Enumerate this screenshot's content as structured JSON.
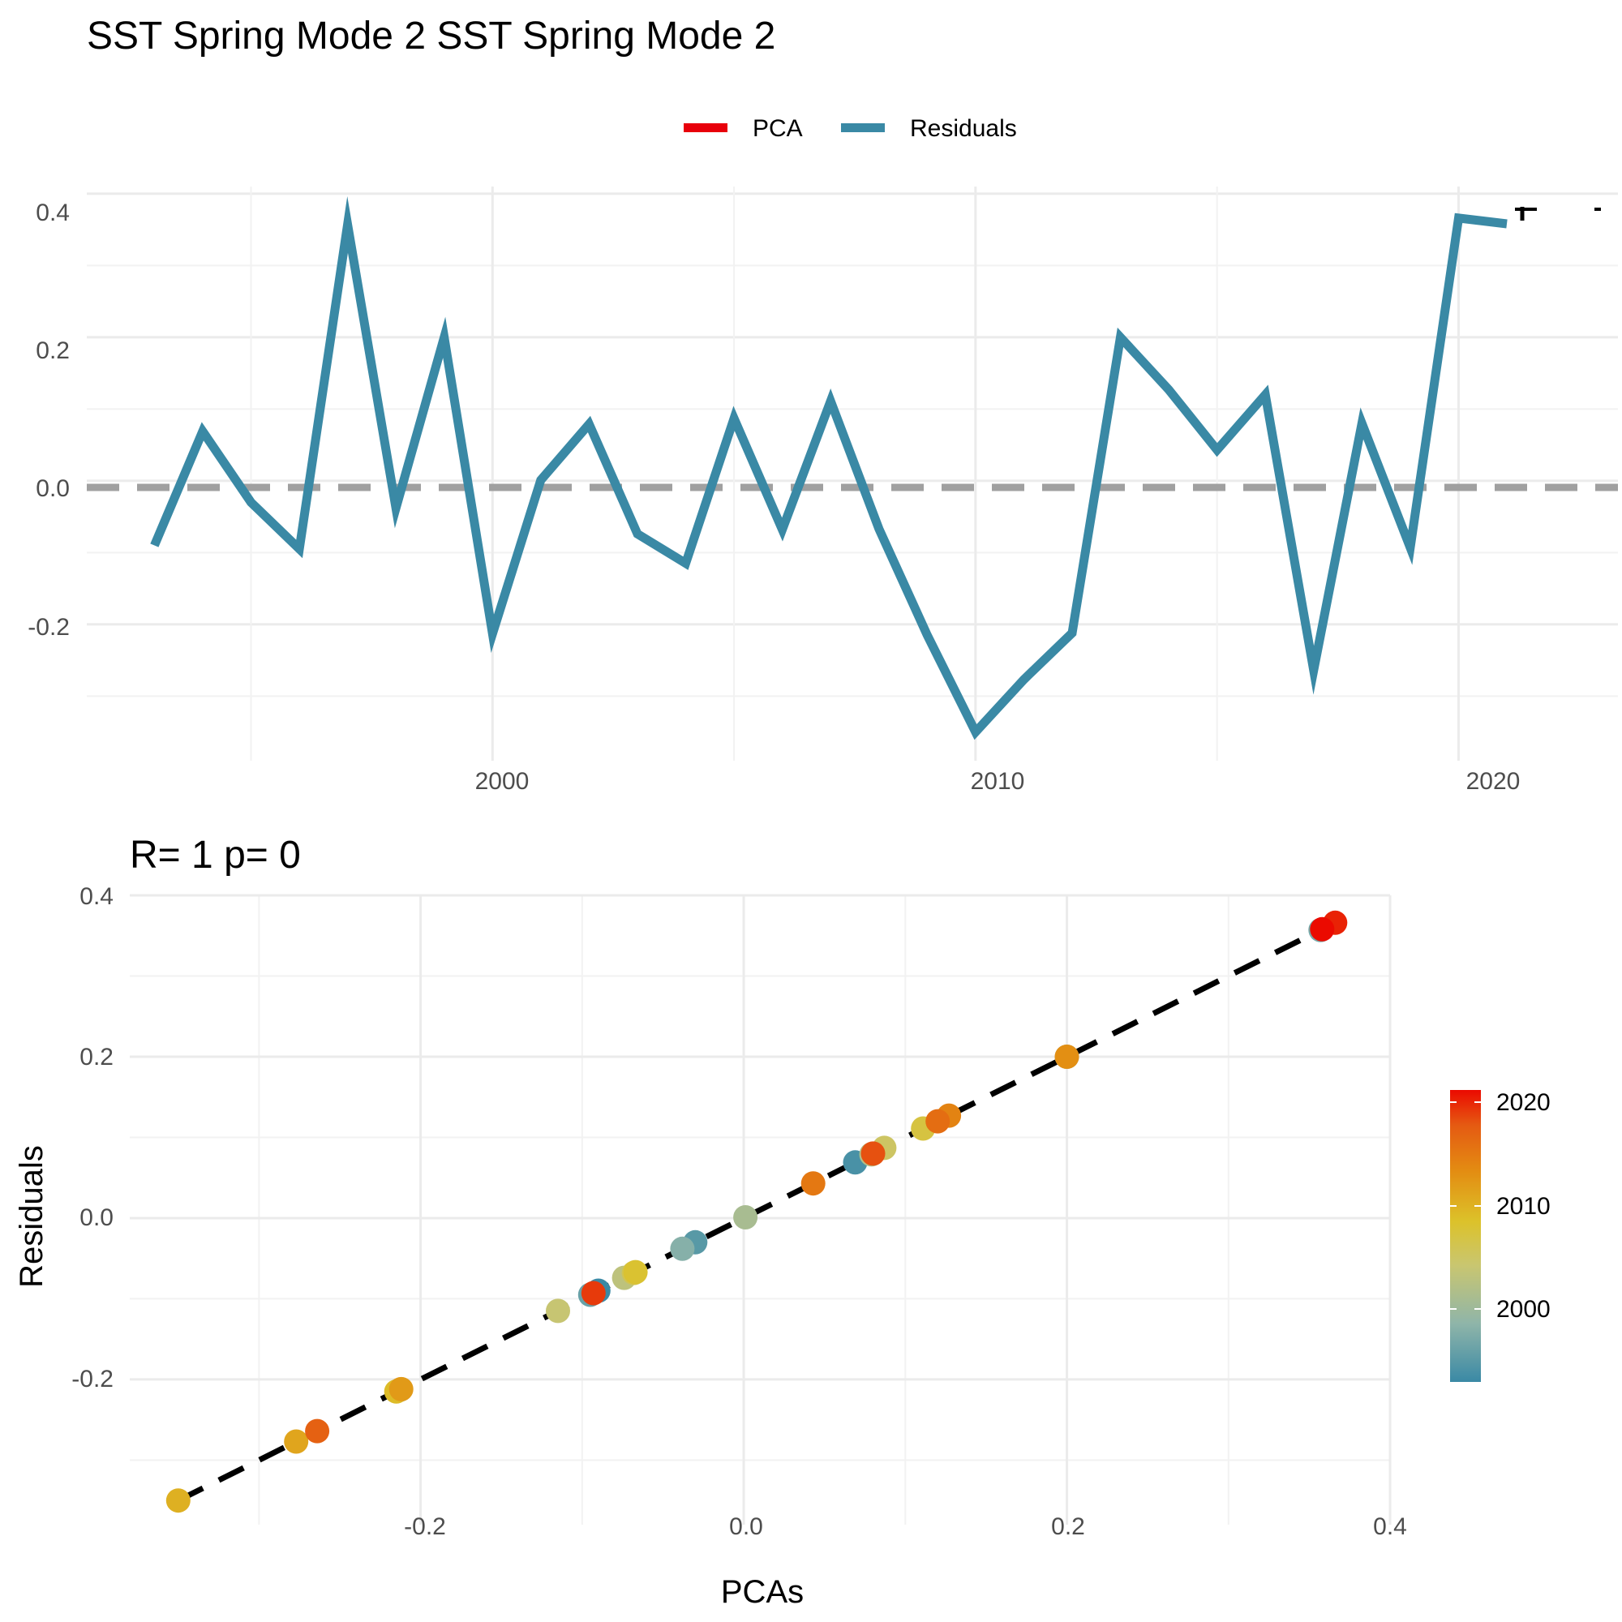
{
  "colors": {
    "pca": "#E8000B",
    "residuals": "#3A89A5",
    "zero_line": "#A0A0A0",
    "fit_line": "#000000",
    "grid": "#EBEBEB",
    "scale_low": "#3A89A5",
    "scale_mid": "#DCC22A",
    "scale_high": "#EB0A00"
  },
  "chart_data": [
    {
      "type": "line",
      "title": "SST Spring Mode 2 SST Spring Mode 2",
      "xlabel": "",
      "ylabel": "",
      "legend": {
        "position": "top",
        "entries": [
          {
            "label": "PCA",
            "color": "#E8000B"
          },
          {
            "label": "Residuals",
            "color": "#3A89A5"
          }
        ]
      },
      "grid": true,
      "x_ticks": [
        "2000",
        "2010",
        "2020"
      ],
      "y_ticks": [
        "-0.2",
        "0.0",
        "0.2",
        "0.4"
      ],
      "xlim": [
        1991.6,
        2023.3
      ],
      "ylim": [
        -0.39,
        0.41
      ],
      "reference_line": {
        "y": 0,
        "style": "dashed"
      },
      "x": [
        1993,
        1994,
        1995,
        1996,
        1997,
        1998,
        1999,
        2000,
        2001,
        2002,
        2003,
        2004,
        2005,
        2006,
        2007,
        2008,
        2009,
        2010,
        2011,
        2012,
        2013,
        2014,
        2015,
        2016,
        2017,
        2018,
        2019,
        2020,
        2021
      ],
      "series": [
        {
          "name": "Residuals",
          "values": [
            -0.09,
            0.069,
            -0.03,
            -0.095,
            0.357,
            -0.038,
            0.2,
            -0.213,
            0.001,
            0.079,
            -0.074,
            -0.115,
            0.087,
            -0.068,
            0.111,
            -0.067,
            -0.215,
            -0.35,
            -0.277,
            -0.212,
            0.2,
            0.127,
            0.043,
            0.12,
            -0.264,
            0.08,
            -0.093,
            0.366,
            0.358
          ]
        }
      ]
    },
    {
      "type": "scatter",
      "title": "R= 1  p= 0",
      "xlabel": "PCAs",
      "ylabel": "Residuals",
      "grid": true,
      "x_ticks": [
        "-0.2",
        "0.0",
        "0.2",
        "0.4"
      ],
      "y_ticks": [
        "-0.2",
        "0.0",
        "0.2",
        "0.4"
      ],
      "xlim": [
        -0.38,
        0.4
      ],
      "ylim": [
        -0.38,
        0.4
      ],
      "fit_line": {
        "style": "dashed",
        "from": [
          -0.35,
          -0.35
        ],
        "to": [
          0.366,
          0.366
        ]
      },
      "color_scale": {
        "title": "",
        "ticks": [
          "2000",
          "2010",
          "2020"
        ],
        "range": [
          1993,
          2021
        ]
      },
      "points": [
        {
          "x": -0.09,
          "y": -0.09,
          "year": 1993
        },
        {
          "x": 0.069,
          "y": 0.069,
          "year": 1994
        },
        {
          "x": -0.03,
          "y": -0.03,
          "year": 1995
        },
        {
          "x": -0.095,
          "y": -0.095,
          "year": 1996
        },
        {
          "x": 0.357,
          "y": 0.357,
          "year": 1997
        },
        {
          "x": -0.038,
          "y": -0.038,
          "year": 1998
        },
        {
          "x": 0.2,
          "y": 0.2,
          "year": 1999
        },
        {
          "x": -0.213,
          "y": -0.213,
          "year": 2000
        },
        {
          "x": 0.001,
          "y": 0.001,
          "year": 2001
        },
        {
          "x": 0.079,
          "y": 0.079,
          "year": 2002
        },
        {
          "x": -0.074,
          "y": -0.074,
          "year": 2003
        },
        {
          "x": -0.115,
          "y": -0.115,
          "year": 2004
        },
        {
          "x": 0.087,
          "y": 0.087,
          "year": 2005
        },
        {
          "x": -0.068,
          "y": -0.068,
          "year": 2006
        },
        {
          "x": 0.111,
          "y": 0.111,
          "year": 2007
        },
        {
          "x": -0.067,
          "y": -0.067,
          "year": 2008
        },
        {
          "x": -0.215,
          "y": -0.215,
          "year": 2009
        },
        {
          "x": -0.35,
          "y": -0.35,
          "year": 2010
        },
        {
          "x": -0.277,
          "y": -0.277,
          "year": 2011
        },
        {
          "x": -0.212,
          "y": -0.212,
          "year": 2012
        },
        {
          "x": 0.2,
          "y": 0.2,
          "year": 2013
        },
        {
          "x": 0.127,
          "y": 0.127,
          "year": 2014
        },
        {
          "x": 0.043,
          "y": 0.043,
          "year": 2015
        },
        {
          "x": 0.12,
          "y": 0.12,
          "year": 2016
        },
        {
          "x": -0.264,
          "y": -0.264,
          "year": 2017
        },
        {
          "x": 0.08,
          "y": 0.08,
          "year": 2018
        },
        {
          "x": -0.093,
          "y": -0.093,
          "year": 2019
        },
        {
          "x": 0.366,
          "y": 0.366,
          "year": 2020
        },
        {
          "x": 0.358,
          "y": 0.358,
          "year": 2021
        }
      ]
    }
  ]
}
